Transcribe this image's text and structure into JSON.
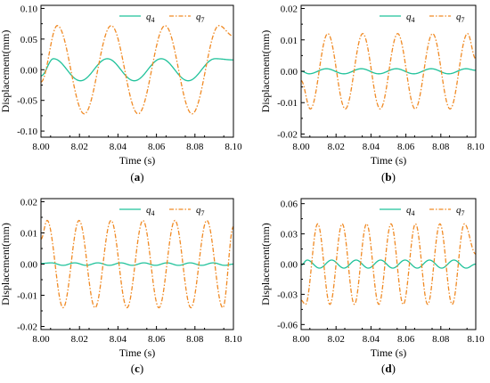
{
  "figure": {
    "panels": [
      {
        "label": "(a)",
        "xlabel": "Time (s)",
        "ylabel": "Displacement(mm)",
        "xticks": [
          "8.00",
          "8.02",
          "8.04",
          "8.06",
          "8.08",
          "8.10"
        ],
        "yticks": [
          "-0.10",
          "-0.05",
          "0.00",
          "0.05",
          "0.10"
        ],
        "legend": [
          {
            "name": "q",
            "sub": "4"
          },
          {
            "name": "q",
            "sub": "7"
          }
        ]
      },
      {
        "label": "(b)",
        "xlabel": "Time (s)",
        "ylabel": "Displacement(mm)",
        "xticks": [
          "8.00",
          "8.02",
          "8.04",
          "8.06",
          "8.08",
          "8.10"
        ],
        "yticks": [
          "-0.02",
          "-0.01",
          "0.00",
          "0.01",
          "0.02"
        ],
        "legend": [
          {
            "name": "q",
            "sub": "4"
          },
          {
            "name": "q",
            "sub": "7"
          }
        ]
      },
      {
        "label": "(c)",
        "xlabel": "Time (s)",
        "ylabel": "Displacement(mm)",
        "xticks": [
          "8.00",
          "8.02",
          "8.04",
          "8.06",
          "8.08",
          "8.10"
        ],
        "yticks": [
          "-0.02",
          "-0.01",
          "0.00",
          "0.01",
          "0.02"
        ],
        "legend": [
          {
            "name": "q",
            "sub": "4"
          },
          {
            "name": "q",
            "sub": "7"
          }
        ]
      },
      {
        "label": "(d)",
        "xlabel": "Time (s)",
        "ylabel": "Displacement(mm)",
        "xticks": [
          "8.00",
          "8.02",
          "8.04",
          "8.06",
          "8.08",
          "8.10"
        ],
        "yticks": [
          "-0.06",
          "-0.03",
          "0.00",
          "0.03",
          "0.06"
        ],
        "legend": [
          {
            "name": "q",
            "sub": "4"
          },
          {
            "name": "q",
            "sub": "7"
          }
        ]
      }
    ]
  },
  "chart_data": [
    {
      "type": "line",
      "title": "",
      "xlabel": "Time (s)",
      "ylabel": "Displacement(mm)",
      "xlim": [
        8.0,
        8.1
      ],
      "ylim": [
        -0.11,
        0.105
      ],
      "grid": false,
      "legend_position": "top-right",
      "series": [
        {
          "name": "q4",
          "color": "#1fc29a",
          "style": "solid",
          "x": [
            8.0,
            8.0065,
            8.0205,
            8.0345,
            8.0485,
            8.0625,
            8.0765,
            8.0905,
            8.1
          ],
          "y": [
            -0.01,
            0.018,
            -0.018,
            0.018,
            -0.018,
            0.018,
            -0.018,
            0.018,
            0.016
          ]
        },
        {
          "name": "q7",
          "color": "#f08a24",
          "style": "dash-dot",
          "x": [
            8.0,
            8.0085,
            8.0225,
            8.0365,
            8.0505,
            8.0645,
            8.0785,
            8.0925,
            8.1
          ],
          "y": [
            -0.02,
            0.072,
            -0.072,
            0.072,
            -0.072,
            0.072,
            -0.072,
            0.072,
            0.055
          ]
        }
      ]
    },
    {
      "type": "line",
      "title": "",
      "xlabel": "Time (s)",
      "ylabel": "Displacement(mm)",
      "xlim": [
        8.0,
        8.1
      ],
      "ylim": [
        -0.021,
        0.021
      ],
      "grid": false,
      "legend_position": "top-right",
      "series": [
        {
          "name": "q4",
          "color": "#1fc29a",
          "style": "solid",
          "x": [
            8.0,
            8.0045,
            8.0145,
            8.0245,
            8.0345,
            8.0445,
            8.0545,
            8.0645,
            8.0745,
            8.0845,
            8.0945,
            8.1
          ],
          "y": [
            0.0,
            -0.0008,
            0.0008,
            -0.0008,
            0.0008,
            -0.0008,
            0.0008,
            -0.0008,
            0.0008,
            -0.0008,
            0.0008,
            0.0003
          ]
        },
        {
          "name": "q7",
          "color": "#f08a24",
          "style": "dash-dot",
          "x": [
            8.0,
            8.0053,
            8.0153,
            8.0253,
            8.0353,
            8.0453,
            8.0553,
            8.0653,
            8.0753,
            8.0853,
            8.0953,
            8.1
          ],
          "y": [
            -0.003,
            -0.012,
            0.012,
            -0.012,
            0.012,
            -0.012,
            0.012,
            -0.012,
            0.012,
            -0.012,
            0.012,
            0.004
          ]
        }
      ]
    },
    {
      "type": "line",
      "title": "",
      "xlabel": "Time (s)",
      "ylabel": "Displacement(mm)",
      "xlim": [
        8.0,
        8.1
      ],
      "ylim": [
        -0.021,
        0.021
      ],
      "grid": false,
      "legend_position": "top-right",
      "series": [
        {
          "name": "q4",
          "color": "#1fc29a",
          "style": "solid",
          "x": [
            8.0,
            8.0055,
            8.0115,
            8.0175,
            8.0235,
            8.0295,
            8.0355,
            8.0415,
            8.0475,
            8.0535,
            8.0595,
            8.0655,
            8.0715,
            8.0775,
            8.0835,
            8.0895,
            8.0955,
            8.1
          ],
          "y": [
            0.0002,
            0.0004,
            -0.0004,
            0.0004,
            -0.0004,
            0.0004,
            -0.0004,
            0.0004,
            -0.0004,
            0.0004,
            -0.0004,
            0.0004,
            -0.0004,
            0.0004,
            -0.0004,
            0.0004,
            -0.0004,
            0.0
          ]
        },
        {
          "name": "q7",
          "color": "#f08a24",
          "style": "dash-dot",
          "x": [
            8.0,
            8.0032,
            8.0115,
            8.0198,
            8.0281,
            8.0364,
            8.0447,
            8.053,
            8.0613,
            8.0696,
            8.0779,
            8.0862,
            8.0945,
            8.1
          ],
          "y": [
            0.008,
            0.014,
            -0.014,
            0.014,
            -0.014,
            0.014,
            -0.014,
            0.014,
            -0.014,
            0.014,
            -0.014,
            0.014,
            -0.014,
            0.012
          ]
        }
      ]
    },
    {
      "type": "line",
      "title": "",
      "xlabel": "Time (s)",
      "ylabel": "Displacement(mm)",
      "xlim": [
        8.0,
        8.1
      ],
      "ylim": [
        -0.065,
        0.065
      ],
      "grid": false,
      "legend_position": "top-right",
      "series": [
        {
          "name": "q4",
          "color": "#1fc29a",
          "style": "solid",
          "x": [
            8.0,
            8.0035,
            8.0105,
            8.0175,
            8.0245,
            8.0315,
            8.0385,
            8.0455,
            8.0525,
            8.0595,
            8.0665,
            8.0735,
            8.0805,
            8.0875,
            8.0945,
            8.1
          ],
          "y": [
            -0.001,
            0.004,
            -0.004,
            0.004,
            -0.004,
            0.004,
            -0.004,
            0.004,
            -0.004,
            0.004,
            -0.004,
            0.004,
            -0.004,
            0.004,
            -0.004,
            0.0
          ]
        },
        {
          "name": "q7",
          "color": "#f08a24",
          "style": "dash-dot",
          "x": [
            8.0,
            8.0025,
            8.0095,
            8.0165,
            8.0235,
            8.0305,
            8.0375,
            8.0445,
            8.0515,
            8.0585,
            8.0655,
            8.0725,
            8.0795,
            8.0865,
            8.0935,
            8.1
          ],
          "y": [
            -0.036,
            -0.04,
            0.04,
            -0.04,
            0.04,
            -0.04,
            0.04,
            -0.04,
            0.04,
            -0.04,
            0.04,
            -0.04,
            0.04,
            -0.04,
            0.04,
            0.01
          ]
        }
      ]
    }
  ]
}
